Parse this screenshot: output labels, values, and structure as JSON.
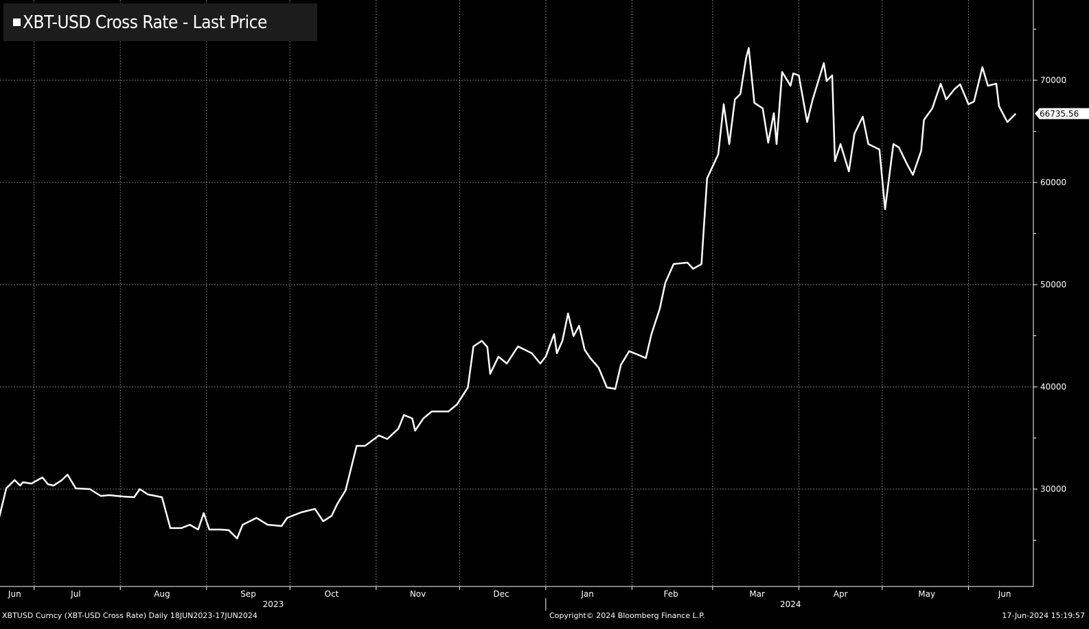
{
  "chart_data": {
    "type": "line",
    "title": "XBT-USD Cross Rate - Last Price",
    "last_price_label": "66735.56",
    "ylim": [
      20470,
      77850
    ],
    "yticks": [
      30000,
      40000,
      50000,
      60000,
      70000
    ],
    "ytick_labels": [
      "30000",
      "40000",
      "50000",
      "60000",
      "70000"
    ],
    "x_unit": "days since 18 Jun 2023",
    "xlim": [
      0,
      371
    ],
    "month_gridlines_days": [
      13,
      44,
      75,
      105,
      136,
      166,
      197,
      228,
      257,
      288,
      318,
      349
    ],
    "month_labels": [
      {
        "label": "Jun",
        "day": 6
      },
      {
        "label": "Jul",
        "day": 28
      },
      {
        "label": "Aug",
        "day": 59
      },
      {
        "label": "Sep",
        "day": 90
      },
      {
        "label": "Oct",
        "day": 120
      },
      {
        "label": "Nov",
        "day": 151
      },
      {
        "label": "Dec",
        "day": 181
      },
      {
        "label": "Jan",
        "day": 212
      },
      {
        "label": "Feb",
        "day": 242
      },
      {
        "label": "Mar",
        "day": 273
      },
      {
        "label": "Apr",
        "day": 303
      },
      {
        "label": "May",
        "day": 334
      },
      {
        "label": "Jun",
        "day": 362
      }
    ],
    "year_labels": [
      {
        "label": "2023",
        "day": 99
      },
      {
        "label": "2024",
        "day": 285
      }
    ],
    "series": [
      {
        "name": "XBT-USD Cross Rate - Last Price",
        "color": "#ffffff",
        "x": [
          0,
          3,
          6,
          8,
          9,
          12,
          16,
          18,
          20,
          23,
          25,
          28,
          33,
          37,
          40,
          45,
          49,
          51,
          54,
          59,
          62,
          66,
          69,
          72,
          74,
          76,
          80,
          83,
          86,
          88,
          93,
          97,
          102,
          104,
          109,
          114,
          117,
          120,
          122,
          125,
          129,
          132,
          137,
          140,
          144,
          146,
          149,
          150,
          153,
          156,
          162,
          165,
          169,
          171,
          174,
          176,
          177,
          180,
          183,
          187,
          192,
          195,
          197,
          200,
          201,
          203,
          205,
          207,
          209,
          211,
          213,
          216,
          219,
          222,
          224,
          227,
          230,
          233,
          235,
          238,
          240,
          243,
          248,
          250,
          253,
          255,
          259,
          261,
          263,
          265,
          267,
          269,
          270,
          272,
          275,
          277,
          279,
          280,
          282,
          285,
          286,
          288,
          291,
          293,
          297,
          298,
          300,
          301,
          303,
          306,
          308,
          311,
          313,
          317,
          319,
          322,
          324,
          327,
          329,
          332,
          333,
          336,
          339,
          341,
          344,
          346,
          349,
          351,
          354,
          356,
          359,
          360,
          363,
          366
        ],
        "y": [
          26710,
          30070,
          30880,
          30340,
          30670,
          30540,
          31140,
          30470,
          30340,
          30880,
          31410,
          30070,
          30000,
          29330,
          29400,
          29270,
          29200,
          30000,
          29470,
          29200,
          26180,
          26180,
          26510,
          26040,
          27650,
          26040,
          26040,
          25980,
          25170,
          26510,
          27180,
          26510,
          26380,
          27180,
          27720,
          28060,
          26850,
          27390,
          28530,
          29870,
          34230,
          34230,
          35240,
          34900,
          35910,
          37250,
          36910,
          35710,
          36910,
          37590,
          37590,
          38260,
          39940,
          43960,
          44500,
          43890,
          41280,
          42960,
          42280,
          43960,
          43290,
          42280,
          42960,
          45170,
          43290,
          44500,
          47180,
          44970,
          45980,
          43630,
          42820,
          41880,
          39940,
          39800,
          42150,
          43490,
          43160,
          42820,
          45170,
          47650,
          50200,
          52020,
          52150,
          51550,
          52020,
          60400,
          62750,
          67650,
          63760,
          68120,
          68660,
          72150,
          73150,
          67790,
          67250,
          63890,
          66780,
          63760,
          70810,
          69460,
          70670,
          70470,
          65910,
          68120,
          71680,
          69930,
          70470,
          62080,
          63760,
          61070,
          64770,
          66440,
          63760,
          63220,
          57380,
          63760,
          63420,
          61750,
          60740,
          63090,
          66110,
          67250,
          69660,
          68120,
          69130,
          69600,
          67650,
          67920,
          71280,
          69460,
          69660,
          67450,
          65910,
          66736
        ]
      }
    ]
  },
  "footer": {
    "left": "XBTUSD Curncy (XBT-USD Cross Rate)  Daily 18JUN2023-17JUN2024",
    "center": "Copyright© 2024 Bloomberg Finance L.P.",
    "right": "17-Jun-2024 15:19:57"
  }
}
